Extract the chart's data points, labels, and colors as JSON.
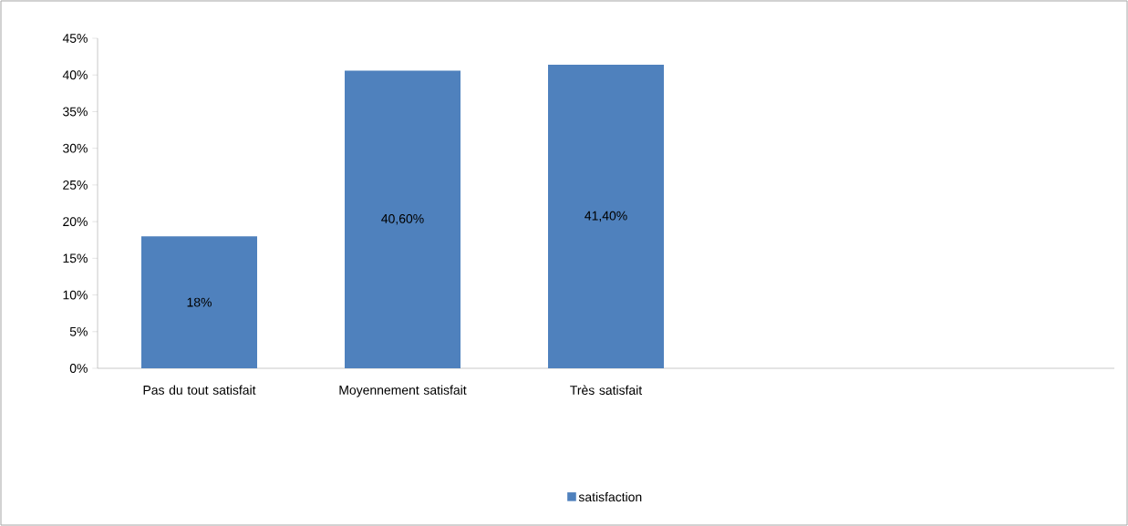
{
  "chart_data": {
    "type": "bar",
    "categories": [
      "Pas du tout satisfait",
      "Moyennement satisfait",
      "Très satisfait",
      null,
      null
    ],
    "series": [
      {
        "name": "satisfaction",
        "color": "#4f81bd",
        "values": [
          18,
          40.6,
          41.4,
          null,
          null
        ],
        "value_labels": [
          "18%",
          "40,60%",
          "41,40%",
          null,
          null
        ]
      }
    ],
    "ylim": [
      0,
      45
    ],
    "yticks": [
      {
        "value": 0,
        "label": "0%"
      },
      {
        "value": 5,
        "label": "5%"
      },
      {
        "value": 10,
        "label": "10%"
      },
      {
        "value": 15,
        "label": "15%"
      },
      {
        "value": 20,
        "label": "20%"
      },
      {
        "value": 25,
        "label": "25%"
      },
      {
        "value": 30,
        "label": "30%"
      },
      {
        "value": 35,
        "label": "35%"
      },
      {
        "value": 40,
        "label": "40%"
      },
      {
        "value": 45,
        "label": "45%"
      }
    ],
    "legend": "bottom"
  }
}
